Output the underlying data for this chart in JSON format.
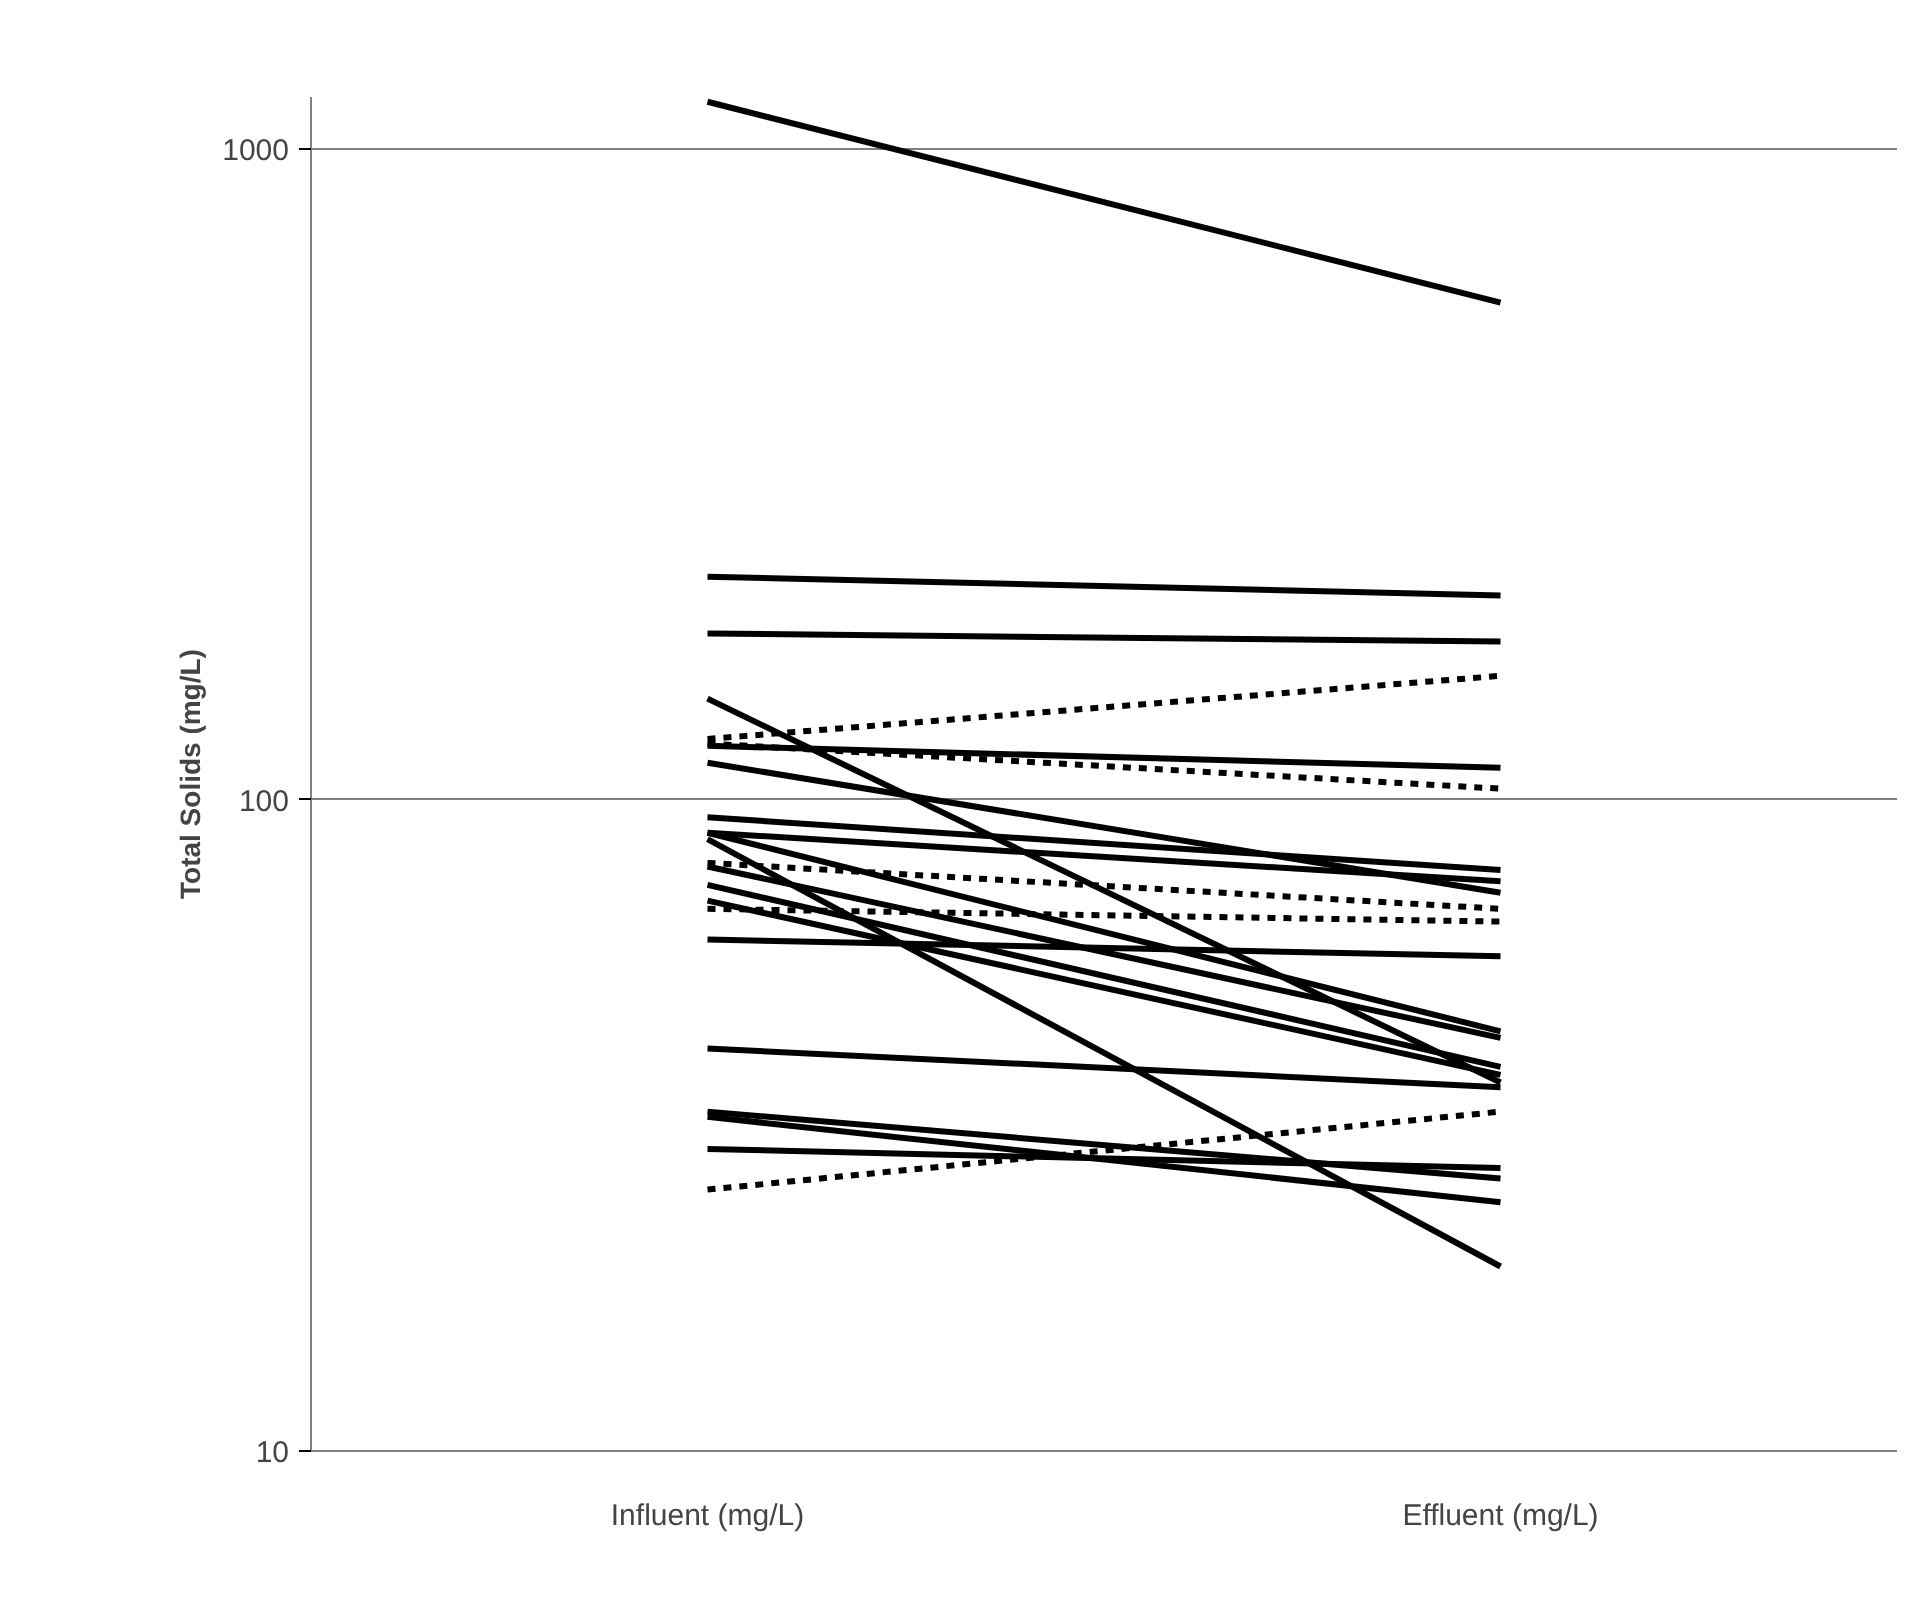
{
  "chart_data": {
    "type": "line",
    "ylabel": "Total Solids (mg/L)",
    "categories": [
      "Influent (mg/L)",
      "Effluent (mg/L)"
    ],
    "log": "y",
    "ylim": [
      10,
      1200
    ],
    "yticks": [
      10,
      100,
      1000
    ],
    "grid": "y",
    "marker": "none",
    "series": [
      {
        "color": "#000000",
        "line_style": "solid",
        "values": [
          1180,
          580
        ]
      },
      {
        "color": "#000000",
        "line_style": "solid",
        "values": [
          220,
          206
        ]
      },
      {
        "color": "#000000",
        "line_style": "solid",
        "values": [
          180,
          175
        ]
      },
      {
        "color": "#000000",
        "line_style": "solid",
        "values": [
          143,
          36.8
        ]
      },
      {
        "color": "#000000",
        "line_style": "solid",
        "values": [
          121,
          112
        ]
      },
      {
        "color": "#000000",
        "line_style": "solid",
        "values": [
          114,
          72
        ]
      },
      {
        "color": "#000000",
        "line_style": "solid",
        "values": [
          94,
          78
        ]
      },
      {
        "color": "#000000",
        "line_style": "solid",
        "values": [
          89,
          75
        ]
      },
      {
        "color": "#000000",
        "line_style": "solid",
        "values": [
          89,
          44.1
        ]
      },
      {
        "color": "#000000",
        "line_style": "solid",
        "values": [
          87,
          19.2
        ]
      },
      {
        "color": "#000000",
        "line_style": "solid",
        "values": [
          79,
          43.1
        ]
      },
      {
        "color": "#000000",
        "line_style": "solid",
        "values": [
          74,
          38.9
        ]
      },
      {
        "color": "#000000",
        "line_style": "solid",
        "values": [
          70,
          37.8
        ]
      },
      {
        "color": "#000000",
        "line_style": "solid",
        "values": [
          61,
          57.5
        ]
      },
      {
        "color": "#000000",
        "line_style": "solid",
        "values": [
          41.5,
          36.2
        ]
      },
      {
        "color": "#000000",
        "line_style": "solid",
        "values": [
          33.2,
          26.2
        ]
      },
      {
        "color": "#000000",
        "line_style": "solid",
        "values": [
          32.6,
          24.1
        ]
      },
      {
        "color": "#000000",
        "line_style": "solid",
        "values": [
          29.1,
          27.2
        ]
      },
      {
        "color": "#000000",
        "line_style": "dashed",
        "values": [
          124,
          155
        ]
      },
      {
        "color": "#000000",
        "line_style": "dashed",
        "values": [
          122,
          104
        ]
      },
      {
        "color": "#000000",
        "line_style": "dashed",
        "values": [
          80,
          68
        ]
      },
      {
        "color": "#000000",
        "line_style": "dashed",
        "values": [
          68,
          65
        ]
      },
      {
        "color": "#000000",
        "line_style": "dashed",
        "values": [
          25.2,
          33.2
        ]
      }
    ]
  }
}
